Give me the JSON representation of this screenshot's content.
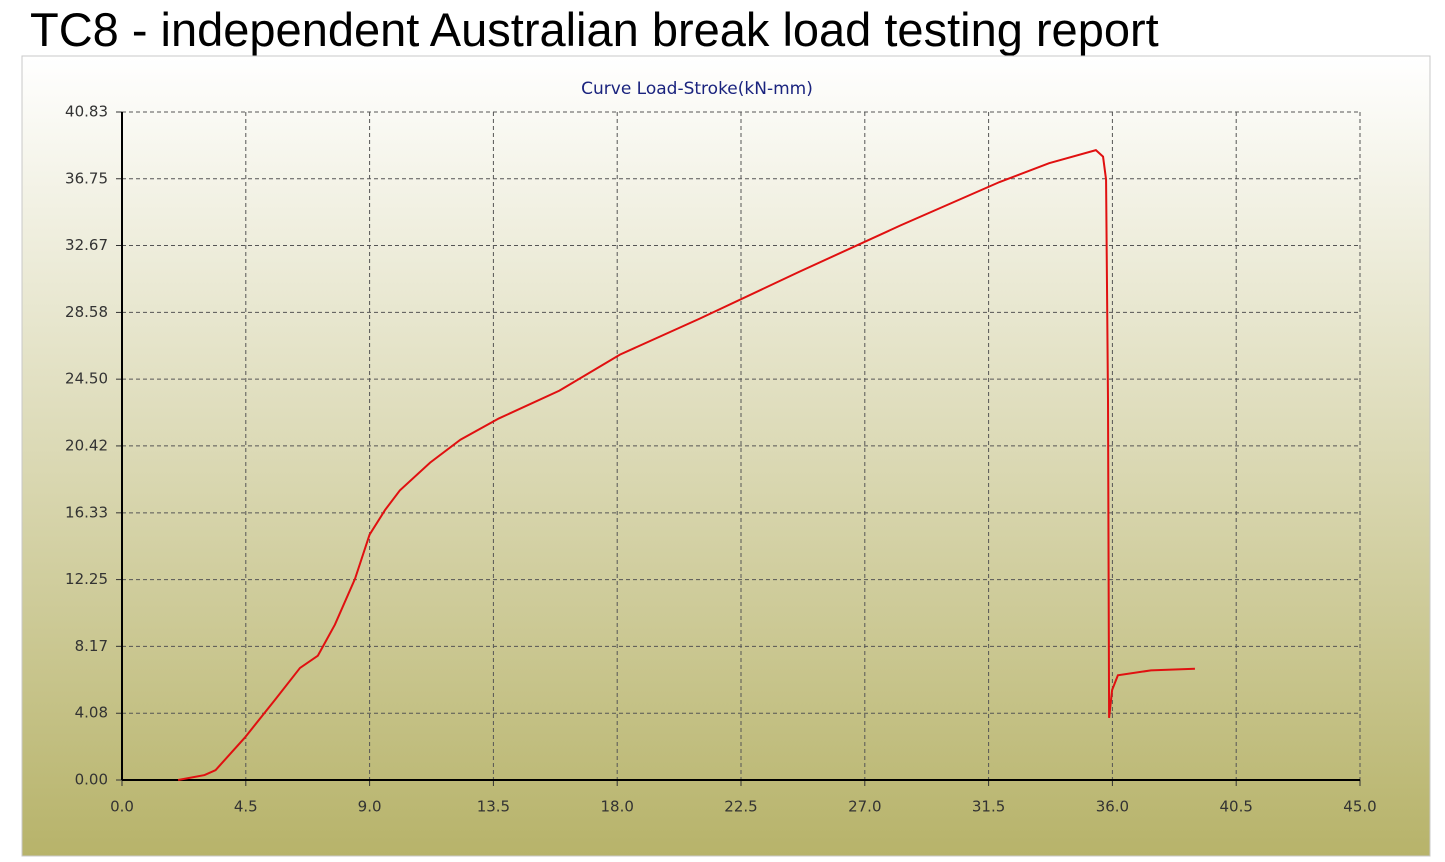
{
  "title": "TC8 - independent Australian break load testing report",
  "chart_data": {
    "type": "line",
    "title": "Curve Load-Stroke(kN-mm)",
    "xlim": [
      0,
      45
    ],
    "ylim": [
      0,
      40.83
    ],
    "xticks": [
      {
        "value": 0,
        "label": "0.0"
      },
      4.5,
      {
        "value": 9,
        "label": "9.0"
      },
      13.5,
      {
        "value": 18,
        "label": "18.0"
      },
      22.5,
      {
        "value": 27,
        "label": "27.0"
      },
      31.5,
      {
        "value": 36,
        "label": "36.0"
      },
      40.5,
      {
        "value": 45,
        "label": "45.0"
      }
    ],
    "yticks": [
      {
        "value": 0,
        "label": "0.00"
      },
      4.08,
      8.17,
      12.25,
      16.33,
      20.42,
      {
        "value": 24.5,
        "label": "24.50"
      },
      28.58,
      32.67,
      36.75,
      40.83
    ],
    "grid": true,
    "series": [
      {
        "color": "#e01010",
        "x": [
          2.04,
          3.0,
          3.4,
          4.47,
          5.56,
          6.47,
          7.12,
          7.74,
          8.47,
          9.0,
          9.56,
          10.1,
          11.2,
          12.3,
          13.7,
          15.9,
          18.1,
          21.0,
          24.6,
          28.3,
          31.9,
          33.7,
          35.4,
          35.66,
          35.77,
          35.84,
          35.88,
          35.99,
          36.2,
          37.4,
          39.0
        ],
        "values": [
          0,
          0.3,
          0.6,
          2.6,
          4.9,
          6.85,
          7.6,
          9.5,
          12.3,
          15.0,
          16.5,
          17.7,
          19.4,
          20.8,
          22.1,
          23.8,
          26.0,
          28.2,
          31.05,
          33.9,
          36.55,
          37.7,
          38.5,
          38.1,
          36.7,
          23.2,
          3.8,
          5.5,
          6.4,
          6.7,
          6.8
        ]
      }
    ]
  }
}
